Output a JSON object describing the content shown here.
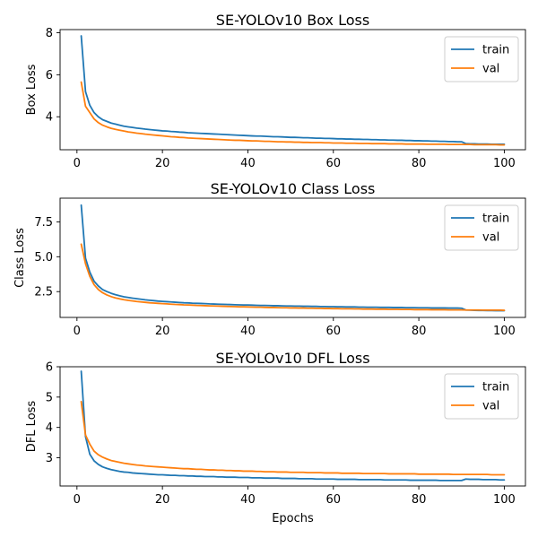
{
  "colors": {
    "train": "#1f77b4",
    "val": "#ff7f0e"
  },
  "chart_data": [
    {
      "type": "line",
      "title": "SE-YOLOv10 Box Loss",
      "xlabel": "",
      "ylabel": "Box Loss",
      "xlim": [
        -3.95,
        104.95
      ],
      "ylim": [
        2.43,
        8.15
      ],
      "xticks": [
        0,
        20,
        40,
        60,
        80,
        100
      ],
      "yticks": [
        4,
        6,
        8
      ],
      "legend": "upper right",
      "x": [
        1,
        2,
        3,
        4,
        5,
        6,
        7,
        8,
        9,
        10,
        11,
        12,
        13,
        14,
        15,
        16,
        17,
        18,
        19,
        20,
        21,
        22,
        23,
        24,
        25,
        26,
        27,
        28,
        29,
        30,
        31,
        32,
        33,
        34,
        35,
        36,
        37,
        38,
        39,
        40,
        41,
        42,
        43,
        44,
        45,
        46,
        47,
        48,
        49,
        50,
        51,
        52,
        53,
        54,
        55,
        56,
        57,
        58,
        59,
        60,
        61,
        62,
        63,
        64,
        65,
        66,
        67,
        68,
        69,
        70,
        71,
        72,
        73,
        74,
        75,
        76,
        77,
        78,
        79,
        80,
        81,
        82,
        83,
        84,
        85,
        86,
        87,
        88,
        89,
        90,
        91,
        92,
        93,
        94,
        95,
        96,
        97,
        98,
        99,
        100
      ],
      "series": [
        {
          "name": "train",
          "values": [
            7.85,
            5.2,
            4.55,
            4.2,
            4.0,
            3.86,
            3.78,
            3.7,
            3.65,
            3.6,
            3.55,
            3.52,
            3.49,
            3.46,
            3.44,
            3.41,
            3.39,
            3.37,
            3.35,
            3.33,
            3.32,
            3.3,
            3.29,
            3.27,
            3.26,
            3.24,
            3.23,
            3.22,
            3.21,
            3.2,
            3.19,
            3.18,
            3.17,
            3.16,
            3.15,
            3.14,
            3.13,
            3.12,
            3.11,
            3.1,
            3.09,
            3.08,
            3.08,
            3.07,
            3.06,
            3.05,
            3.05,
            3.04,
            3.03,
            3.02,
            3.02,
            3.01,
            3.0,
            3.0,
            2.99,
            2.98,
            2.98,
            2.97,
            2.97,
            2.96,
            2.95,
            2.95,
            2.94,
            2.94,
            2.93,
            2.93,
            2.92,
            2.92,
            2.91,
            2.91,
            2.9,
            2.9,
            2.89,
            2.89,
            2.88,
            2.88,
            2.87,
            2.87,
            2.86,
            2.86,
            2.85,
            2.85,
            2.84,
            2.84,
            2.83,
            2.83,
            2.82,
            2.82,
            2.81,
            2.81,
            2.72,
            2.71,
            2.71,
            2.7,
            2.7,
            2.7,
            2.69,
            2.69,
            2.69,
            2.69
          ]
        },
        {
          "name": "val",
          "values": [
            5.65,
            4.5,
            4.2,
            3.9,
            3.72,
            3.6,
            3.52,
            3.45,
            3.4,
            3.36,
            3.32,
            3.28,
            3.25,
            3.22,
            3.2,
            3.17,
            3.15,
            3.13,
            3.11,
            3.09,
            3.07,
            3.05,
            3.04,
            3.02,
            3.01,
            2.99,
            2.98,
            2.97,
            2.96,
            2.95,
            2.94,
            2.93,
            2.92,
            2.91,
            2.9,
            2.89,
            2.88,
            2.88,
            2.87,
            2.86,
            2.85,
            2.85,
            2.84,
            2.83,
            2.83,
            2.82,
            2.81,
            2.81,
            2.8,
            2.8,
            2.79,
            2.79,
            2.78,
            2.78,
            2.77,
            2.77,
            2.77,
            2.76,
            2.76,
            2.75,
            2.75,
            2.75,
            2.74,
            2.74,
            2.74,
            2.73,
            2.73,
            2.73,
            2.72,
            2.72,
            2.72,
            2.72,
            2.71,
            2.71,
            2.71,
            2.71,
            2.7,
            2.7,
            2.7,
            2.7,
            2.7,
            2.69,
            2.69,
            2.69,
            2.69,
            2.69,
            2.68,
            2.68,
            2.68,
            2.68,
            2.68,
            2.68,
            2.67,
            2.67,
            2.67,
            2.67,
            2.67,
            2.67,
            2.66,
            2.66
          ]
        }
      ]
    },
    {
      "type": "line",
      "title": "SE-YOLOv10 Class Loss",
      "xlabel": "",
      "ylabel": "Class Loss",
      "xlim": [
        -3.95,
        104.95
      ],
      "ylim": [
        0.65,
        9.2
      ],
      "xticks": [
        0,
        20,
        40,
        60,
        80,
        100
      ],
      "yticks": [
        2.5,
        5.0,
        7.5
      ],
      "yticklabels": [
        "2.5",
        "5.0",
        "7.5"
      ],
      "legend": "upper right",
      "x": [
        1,
        2,
        3,
        4,
        5,
        6,
        7,
        8,
        9,
        10,
        11,
        12,
        13,
        14,
        15,
        16,
        17,
        18,
        19,
        20,
        21,
        22,
        23,
        24,
        25,
        26,
        27,
        28,
        29,
        30,
        31,
        32,
        33,
        34,
        35,
        36,
        37,
        38,
        39,
        40,
        41,
        42,
        43,
        44,
        45,
        46,
        47,
        48,
        49,
        50,
        51,
        52,
        53,
        54,
        55,
        56,
        57,
        58,
        59,
        60,
        61,
        62,
        63,
        64,
        65,
        66,
        67,
        68,
        69,
        70,
        71,
        72,
        73,
        74,
        75,
        76,
        77,
        78,
        79,
        80,
        81,
        82,
        83,
        84,
        85,
        86,
        87,
        88,
        89,
        90,
        91,
        92,
        93,
        94,
        95,
        96,
        97,
        98,
        99,
        100
      ],
      "series": [
        {
          "name": "train",
          "values": [
            8.7,
            4.9,
            3.9,
            3.25,
            2.9,
            2.65,
            2.5,
            2.38,
            2.28,
            2.2,
            2.13,
            2.08,
            2.03,
            1.99,
            1.95,
            1.91,
            1.88,
            1.85,
            1.82,
            1.8,
            1.78,
            1.76,
            1.74,
            1.72,
            1.7,
            1.69,
            1.67,
            1.66,
            1.65,
            1.64,
            1.62,
            1.61,
            1.6,
            1.59,
            1.58,
            1.57,
            1.56,
            1.55,
            1.54,
            1.54,
            1.53,
            1.52,
            1.51,
            1.51,
            1.5,
            1.49,
            1.49,
            1.48,
            1.47,
            1.47,
            1.46,
            1.46,
            1.45,
            1.45,
            1.44,
            1.44,
            1.43,
            1.43,
            1.42,
            1.42,
            1.41,
            1.41,
            1.4,
            1.4,
            1.4,
            1.39,
            1.39,
            1.38,
            1.38,
            1.38,
            1.37,
            1.37,
            1.37,
            1.36,
            1.36,
            1.36,
            1.35,
            1.35,
            1.35,
            1.34,
            1.34,
            1.34,
            1.33,
            1.33,
            1.33,
            1.33,
            1.32,
            1.32,
            1.32,
            1.31,
            1.18,
            1.17,
            1.16,
            1.15,
            1.15,
            1.14,
            1.14,
            1.13,
            1.13,
            1.13
          ]
        },
        {
          "name": "val",
          "values": [
            5.9,
            4.5,
            3.6,
            3.0,
            2.65,
            2.42,
            2.26,
            2.14,
            2.05,
            1.98,
            1.92,
            1.87,
            1.83,
            1.79,
            1.76,
            1.73,
            1.7,
            1.68,
            1.66,
            1.64,
            1.62,
            1.6,
            1.58,
            1.57,
            1.55,
            1.54,
            1.53,
            1.51,
            1.5,
            1.49,
            1.48,
            1.47,
            1.46,
            1.45,
            1.44,
            1.43,
            1.42,
            1.41,
            1.41,
            1.4,
            1.39,
            1.38,
            1.38,
            1.37,
            1.36,
            1.36,
            1.35,
            1.34,
            1.34,
            1.33,
            1.33,
            1.32,
            1.32,
            1.31,
            1.31,
            1.3,
            1.3,
            1.29,
            1.29,
            1.28,
            1.28,
            1.27,
            1.27,
            1.27,
            1.26,
            1.26,
            1.25,
            1.25,
            1.25,
            1.24,
            1.24,
            1.24,
            1.23,
            1.23,
            1.23,
            1.22,
            1.22,
            1.22,
            1.21,
            1.21,
            1.21,
            1.21,
            1.2,
            1.2,
            1.2,
            1.2,
            1.19,
            1.19,
            1.19,
            1.19,
            1.18,
            1.18,
            1.18,
            1.18,
            1.17,
            1.17,
            1.17,
            1.17,
            1.17,
            1.16
          ]
        }
      ]
    },
    {
      "type": "line",
      "title": "SE-YOLOv10 DFL Loss",
      "xlabel": "Epochs",
      "ylabel": "DFL Loss",
      "xlim": [
        -3.95,
        104.95
      ],
      "ylim": [
        2.07,
        6.0
      ],
      "xticks": [
        0,
        20,
        40,
        60,
        80,
        100
      ],
      "yticks": [
        3,
        4,
        5,
        6
      ],
      "legend": "upper right",
      "x": [
        1,
        2,
        3,
        4,
        5,
        6,
        7,
        8,
        9,
        10,
        11,
        12,
        13,
        14,
        15,
        16,
        17,
        18,
        19,
        20,
        21,
        22,
        23,
        24,
        25,
        26,
        27,
        28,
        29,
        30,
        31,
        32,
        33,
        34,
        35,
        36,
        37,
        38,
        39,
        40,
        41,
        42,
        43,
        44,
        45,
        46,
        47,
        48,
        49,
        50,
        51,
        52,
        53,
        54,
        55,
        56,
        57,
        58,
        59,
        60,
        61,
        62,
        63,
        64,
        65,
        66,
        67,
        68,
        69,
        70,
        71,
        72,
        73,
        74,
        75,
        76,
        77,
        78,
        79,
        80,
        81,
        82,
        83,
        84,
        85,
        86,
        87,
        88,
        89,
        90,
        91,
        92,
        93,
        94,
        95,
        96,
        97,
        98,
        99,
        100
      ],
      "series": [
        {
          "name": "train",
          "values": [
            5.85,
            3.7,
            3.12,
            2.9,
            2.78,
            2.7,
            2.65,
            2.61,
            2.58,
            2.55,
            2.53,
            2.52,
            2.5,
            2.49,
            2.48,
            2.47,
            2.46,
            2.45,
            2.44,
            2.44,
            2.43,
            2.42,
            2.42,
            2.41,
            2.41,
            2.4,
            2.4,
            2.39,
            2.39,
            2.38,
            2.38,
            2.38,
            2.37,
            2.37,
            2.36,
            2.36,
            2.36,
            2.35,
            2.35,
            2.35,
            2.34,
            2.34,
            2.34,
            2.33,
            2.33,
            2.33,
            2.33,
            2.32,
            2.32,
            2.32,
            2.32,
            2.31,
            2.31,
            2.31,
            2.31,
            2.3,
            2.3,
            2.3,
            2.3,
            2.3,
            2.29,
            2.29,
            2.29,
            2.29,
            2.29,
            2.28,
            2.28,
            2.28,
            2.28,
            2.28,
            2.28,
            2.27,
            2.27,
            2.27,
            2.27,
            2.27,
            2.27,
            2.26,
            2.26,
            2.26,
            2.26,
            2.26,
            2.26,
            2.26,
            2.25,
            2.25,
            2.25,
            2.25,
            2.25,
            2.25,
            2.3,
            2.29,
            2.29,
            2.29,
            2.28,
            2.28,
            2.28,
            2.28,
            2.27,
            2.27
          ]
        },
        {
          "name": "val",
          "values": [
            4.85,
            3.75,
            3.45,
            3.22,
            3.1,
            3.02,
            2.96,
            2.91,
            2.88,
            2.85,
            2.82,
            2.8,
            2.78,
            2.76,
            2.75,
            2.73,
            2.72,
            2.71,
            2.7,
            2.69,
            2.68,
            2.67,
            2.66,
            2.65,
            2.64,
            2.64,
            2.63,
            2.62,
            2.62,
            2.61,
            2.6,
            2.6,
            2.59,
            2.59,
            2.58,
            2.58,
            2.57,
            2.57,
            2.56,
            2.56,
            2.56,
            2.55,
            2.55,
            2.54,
            2.54,
            2.54,
            2.53,
            2.53,
            2.53,
            2.52,
            2.52,
            2.52,
            2.52,
            2.51,
            2.51,
            2.51,
            2.51,
            2.5,
            2.5,
            2.5,
            2.5,
            2.49,
            2.49,
            2.49,
            2.49,
            2.49,
            2.48,
            2.48,
            2.48,
            2.48,
            2.48,
            2.48,
            2.47,
            2.47,
            2.47,
            2.47,
            2.47,
            2.47,
            2.47,
            2.46,
            2.46,
            2.46,
            2.46,
            2.46,
            2.46,
            2.46,
            2.46,
            2.45,
            2.45,
            2.45,
            2.45,
            2.45,
            2.45,
            2.45,
            2.45,
            2.45,
            2.44,
            2.44,
            2.44,
            2.44
          ]
        }
      ]
    }
  ]
}
